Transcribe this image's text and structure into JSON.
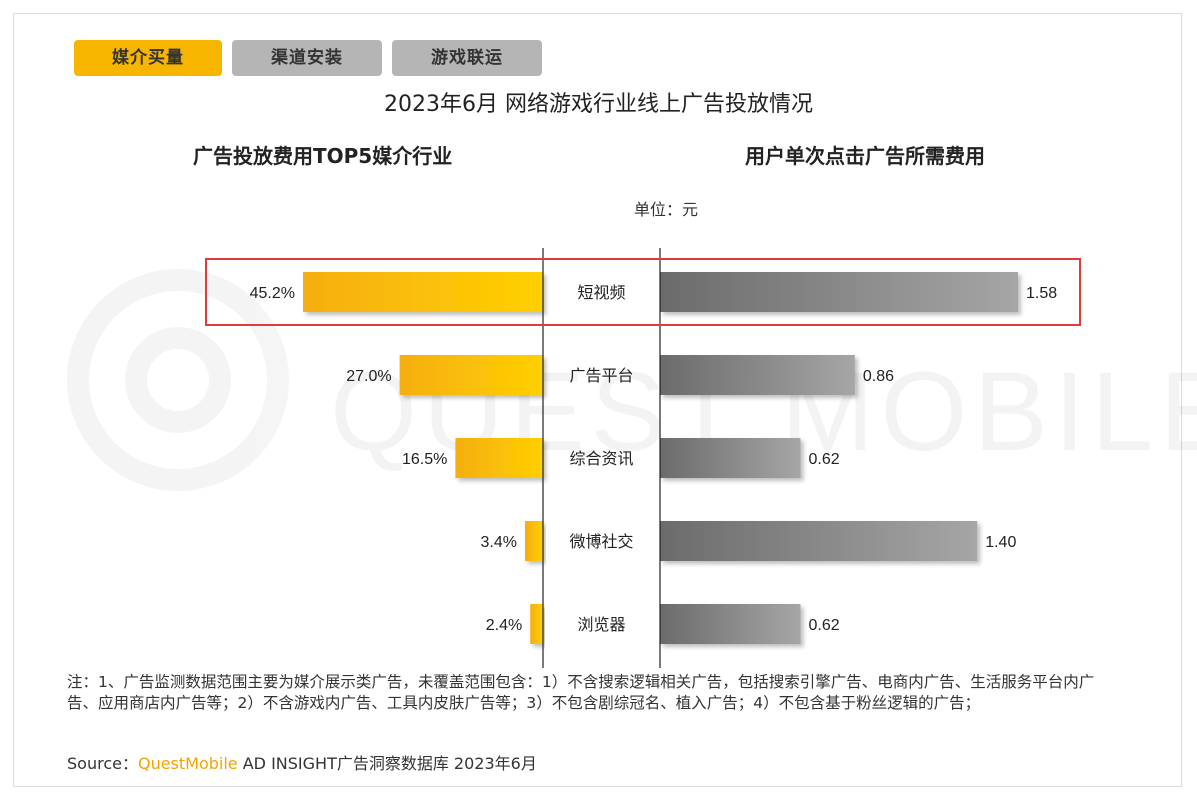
{
  "tabs": [
    "媒介买量",
    "渠道安装",
    "游戏联运"
  ],
  "title": "2023年6月 网络游戏行业线上广告投放情况",
  "left_subtitle": "广告投放费用TOP5媒介行业",
  "right_subtitle": "用户单次点击广告所需费用",
  "unit": "单位：元",
  "watermark": "QUEST MOBILE",
  "notes": "注：1、广告监测数据范围主要为媒介展示类广告，未覆盖范围包含：1）不含搜索逻辑相关广告，包括搜索引擎广告、电商内广告、生活服务平台内广告、应用商店内广告等；2）不含游戏内广告、工具内皮肤广告等；3）不包含剧综冠名、植入广告；4）不包含基于粉丝逻辑的广告；",
  "source": {
    "prefix": "Source：",
    "brand": "QuestMobile",
    "rest": " AD INSIGHT广告洞察数据库 2023年6月"
  },
  "colors": {
    "left_bar_start": "#f5ae12",
    "left_bar_end": "#ffd000",
    "right_bar_start": "#6b6b6b",
    "right_bar_end": "#a6a6a6",
    "highlight_box": "#e23b3b",
    "tab_active": "#f7b500",
    "tab_inactive": "#b5b5b5"
  },
  "chart_data": {
    "type": "bar",
    "categories": [
      "短视频",
      "广告平台",
      "综合资讯",
      "微博社交",
      "浏览器"
    ],
    "series": [
      {
        "values": [
          45.2,
          27.0,
          16.5,
          3.4,
          2.4
        ],
        "labels": [
          "45.2%",
          "27.0%",
          "16.5%",
          "3.4%",
          "2.4%"
        ]
      },
      {
        "values": [
          1.58,
          0.86,
          0.62,
          1.4,
          0.62
        ],
        "labels": [
          "1.58",
          "0.86",
          "0.62",
          "1.40",
          "0.62"
        ]
      }
    ],
    "highlighted_category": "短视频"
  }
}
